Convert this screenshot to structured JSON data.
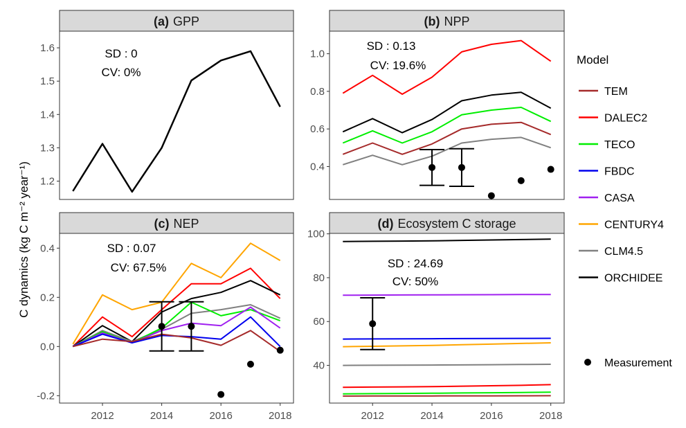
{
  "figure": {
    "ylabel": "C dynamics (kg C m⁻² year⁻¹)",
    "legend": {
      "title": "Model",
      "items": [
        {
          "name": "TEM",
          "color": "#A52A2A"
        },
        {
          "name": "DALEC2",
          "color": "#FF0000"
        },
        {
          "name": "TECO",
          "color": "#00EE00"
        },
        {
          "name": "FBDC",
          "color": "#0000EE"
        },
        {
          "name": "CASA",
          "color": "#A020F0"
        },
        {
          "name": "CENTURY4",
          "color": "#FFA500"
        },
        {
          "name": "CLM4.5",
          "color": "#808080"
        },
        {
          "name": "ORCHIDEE",
          "color": "#000000"
        }
      ],
      "measurement_label": "Measurement"
    }
  },
  "chart_data": [
    {
      "type": "line",
      "panel": "a",
      "title_letter": "(a)",
      "title_text": "GPP",
      "annotations": [
        "SD : 0",
        "CV: 0%"
      ],
      "x": [
        2011,
        2012,
        2013,
        2014,
        2015,
        2016,
        2017,
        2018
      ],
      "xlim": [
        2010.55,
        2018.45
      ],
      "ylim": [
        1.145,
        1.65
      ],
      "yticks": [
        1.2,
        1.3,
        1.4,
        1.5,
        1.6
      ],
      "ytick_labels": [
        "1.2",
        "1.3",
        "1.4",
        "1.5",
        "1.6"
      ],
      "show_x_ticks": false,
      "show_y_label": true,
      "series": [
        {
          "name": "ORCHIDEE",
          "values": [
            1.17,
            1.312,
            1.168,
            1.3,
            1.502,
            1.562,
            1.59,
            1.423
          ]
        }
      ],
      "measurements": []
    },
    {
      "type": "line",
      "panel": "b",
      "title_letter": "(b)",
      "title_text": "NPP",
      "annotations": [
        "SD : 0.13",
        "CV: 19.6%"
      ],
      "x": [
        2011,
        2012,
        2013,
        2014,
        2015,
        2016,
        2017,
        2018
      ],
      "xlim": [
        2010.55,
        2018.45
      ],
      "ylim": [
        0.225,
        1.12
      ],
      "yticks": [
        0.4,
        0.6,
        0.8,
        1.0
      ],
      "ytick_labels": [
        "0.4",
        "0.6",
        "0.8",
        "1.0"
      ],
      "show_x_ticks": false,
      "show_y_label": false,
      "series": [
        {
          "name": "DALEC2",
          "values": [
            0.79,
            0.885,
            0.785,
            0.875,
            1.01,
            1.05,
            1.07,
            0.96
          ]
        },
        {
          "name": "ORCHIDEE",
          "values": [
            0.585,
            0.655,
            0.58,
            0.65,
            0.75,
            0.78,
            0.795,
            0.71
          ]
        },
        {
          "name": "TECO",
          "values": [
            0.525,
            0.59,
            0.525,
            0.585,
            0.675,
            0.7,
            0.715,
            0.64
          ]
        },
        {
          "name": "TEM",
          "values": [
            0.465,
            0.525,
            0.465,
            0.52,
            0.6,
            0.625,
            0.635,
            0.57
          ]
        },
        {
          "name": "CLM4.5",
          "values": [
            0.41,
            0.46,
            0.41,
            0.455,
            0.525,
            0.545,
            0.555,
            0.5
          ]
        }
      ],
      "measurements": [
        {
          "x": 2014,
          "y": 0.395,
          "lo": 0.3,
          "hi": 0.49
        },
        {
          "x": 2015,
          "y": 0.395,
          "lo": 0.295,
          "hi": 0.495
        },
        {
          "x": 2016,
          "y": 0.245
        },
        {
          "x": 2017,
          "y": 0.325
        },
        {
          "x": 2018,
          "y": 0.385
        }
      ]
    },
    {
      "type": "line",
      "panel": "c",
      "title_letter": "(c)",
      "title_text": "NEP",
      "annotations": [
        "SD : 0.07",
        "CV: 67.5%"
      ],
      "x": [
        2011,
        2012,
        2013,
        2014,
        2015,
        2016,
        2017,
        2018
      ],
      "xlim": [
        2010.55,
        2018.45
      ],
      "ylim": [
        -0.23,
        0.46
      ],
      "yticks": [
        -0.2,
        0.0,
        0.2,
        0.4
      ],
      "ytick_labels": [
        "-0.2",
        "0.0",
        "0.2",
        "0.4"
      ],
      "xticks": [
        2012,
        2014,
        2016,
        2018
      ],
      "show_x_ticks": true,
      "show_y_label": false,
      "series": [
        {
          "name": "CENTURY4",
          "values": [
            0.01,
            0.21,
            0.15,
            0.18,
            0.338,
            0.28,
            0.42,
            0.35
          ]
        },
        {
          "name": "DALEC2",
          "values": [
            0.0,
            0.12,
            0.04,
            0.15,
            0.255,
            0.255,
            0.318,
            0.195
          ]
        },
        {
          "name": "ORCHIDEE",
          "values": [
            0.0,
            0.085,
            0.02,
            0.14,
            0.195,
            0.22,
            0.268,
            0.21
          ]
        },
        {
          "name": "CLM4.5",
          "values": [
            0.0,
            0.065,
            0.02,
            0.07,
            0.135,
            0.15,
            0.17,
            0.115
          ]
        },
        {
          "name": "TECO",
          "values": [
            0.0,
            0.06,
            0.015,
            0.075,
            0.18,
            0.125,
            0.15,
            0.105
          ]
        },
        {
          "name": "CASA",
          "values": [
            0.0,
            0.055,
            0.015,
            0.065,
            0.095,
            0.085,
            0.16,
            0.075
          ]
        },
        {
          "name": "FBDC",
          "values": [
            0.0,
            0.05,
            0.015,
            0.045,
            0.04,
            0.03,
            0.12,
            0.0
          ]
        },
        {
          "name": "TEM",
          "values": [
            0.0,
            0.03,
            0.02,
            0.05,
            0.035,
            0.005,
            0.065,
            -0.02
          ]
        }
      ],
      "measurements": [
        {
          "x": 2014,
          "y": 0.082,
          "lo": -0.018,
          "hi": 0.182
        },
        {
          "x": 2015,
          "y": 0.082,
          "lo": -0.018,
          "hi": 0.182
        },
        {
          "x": 2016,
          "y": -0.195
        },
        {
          "x": 2017,
          "y": -0.072
        },
        {
          "x": 2018,
          "y": -0.015
        }
      ]
    },
    {
      "type": "line",
      "panel": "d",
      "title_letter": "(d)",
      "title_text": "Ecosystem C storage",
      "annotations": [
        "SD : 24.69",
        "CV: 50%"
      ],
      "x": [
        2011,
        2012,
        2013,
        2014,
        2015,
        2016,
        2017,
        2018
      ],
      "xlim": [
        2010.55,
        2018.45
      ],
      "ylim": [
        22.8,
        100.2
      ],
      "yticks": [
        40,
        60,
        80,
        100
      ],
      "ytick_labels": [
        "40",
        "60",
        "80",
        "100"
      ],
      "xticks": [
        2012,
        2014,
        2016,
        2018
      ],
      "show_x_ticks": true,
      "show_y_label": false,
      "series": [
        {
          "name": "ORCHIDEE",
          "values": [
            96.5,
            96.6,
            96.7,
            96.8,
            97.0,
            97.2,
            97.4,
            97.6
          ]
        },
        {
          "name": "CASA",
          "values": [
            72.0,
            72.05,
            72.1,
            72.15,
            72.2,
            72.25,
            72.3,
            72.35
          ]
        },
        {
          "name": "FBDC",
          "values": [
            52.0,
            52.05,
            52.1,
            52.15,
            52.2,
            52.25,
            52.3,
            52.35
          ]
        },
        {
          "name": "CENTURY4",
          "values": [
            48.5,
            48.7,
            48.9,
            49.1,
            49.4,
            49.7,
            50.0,
            50.3
          ]
        },
        {
          "name": "CLM4.5",
          "values": [
            40.0,
            40.05,
            40.1,
            40.15,
            40.2,
            40.3,
            40.4,
            40.5
          ]
        },
        {
          "name": "DALEC2",
          "values": [
            30.0,
            30.1,
            30.2,
            30.3,
            30.5,
            30.7,
            30.9,
            31.2
          ]
        },
        {
          "name": "TECO",
          "values": [
            27.0,
            27.1,
            27.2,
            27.3,
            27.4,
            27.5,
            27.6,
            27.8
          ]
        },
        {
          "name": "TEM",
          "values": [
            26.0,
            26.02,
            26.04,
            26.06,
            26.08,
            26.1,
            26.12,
            26.14
          ]
        }
      ],
      "measurements": [
        {
          "x": 2012,
          "y": 59.0,
          "lo": 47.2,
          "hi": 70.8
        }
      ]
    }
  ]
}
